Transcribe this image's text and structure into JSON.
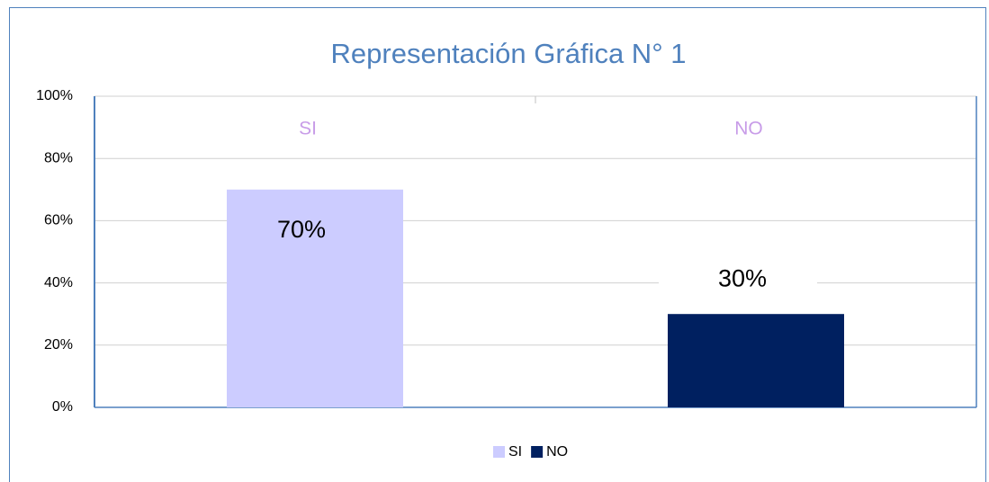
{
  "chart_data": {
    "type": "bar",
    "title": "Representación Gráfica N° 1",
    "categories": [
      "SI",
      "NO"
    ],
    "values": [
      70,
      30
    ],
    "value_labels": [
      "70%",
      "30%"
    ],
    "colors": [
      "#ccccff",
      "#002060"
    ],
    "ylim": [
      0,
      100
    ],
    "yticks": [
      {
        "value": 0,
        "label": "0%"
      },
      {
        "value": 20,
        "label": "20%"
      },
      {
        "value": 40,
        "label": "40%"
      },
      {
        "value": 60,
        "label": "60%"
      },
      {
        "value": 80,
        "label": "80%"
      },
      {
        "value": 100,
        "label": "100%"
      }
    ],
    "grid": true,
    "legend": "bottom"
  }
}
